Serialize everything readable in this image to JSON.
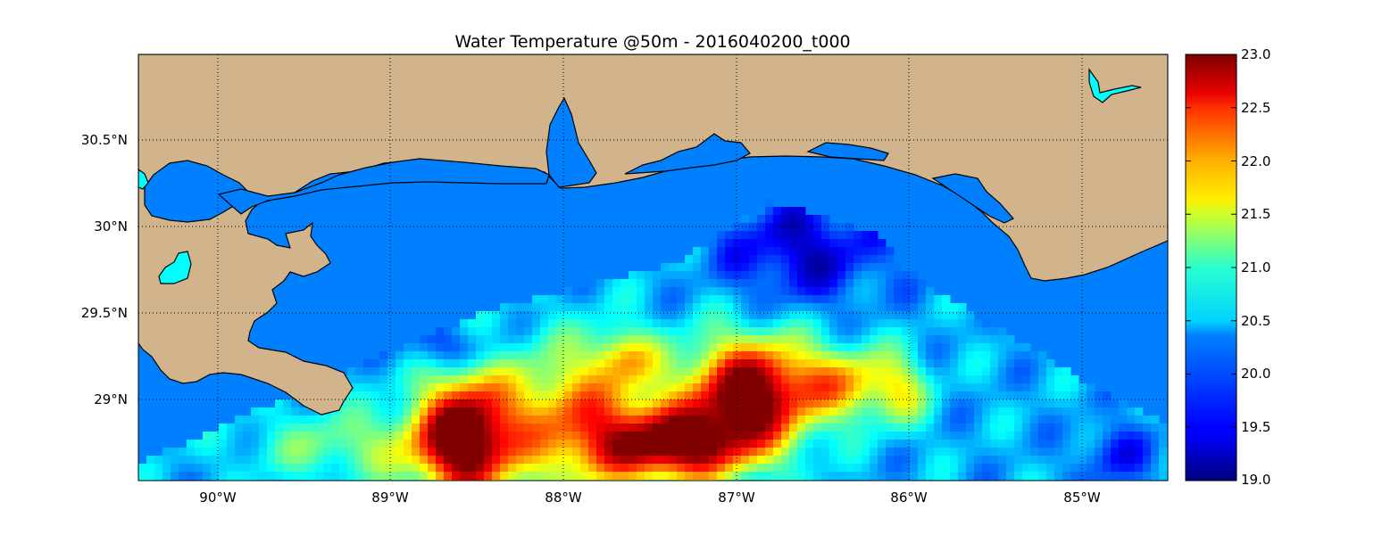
{
  "title": "Water Temperature @50m - 2016040200_t000",
  "map": {
    "lon_range": [
      -90.5,
      -84.5
    ],
    "lat_range": [
      28.55,
      31.0
    ],
    "lon_ticks": [
      {
        "value": -90,
        "label": "90°W"
      },
      {
        "value": -89,
        "label": "89°W"
      },
      {
        "value": -88,
        "label": "88°W"
      },
      {
        "value": -87,
        "label": "87°W"
      },
      {
        "value": -86,
        "label": "86°W"
      },
      {
        "value": -85,
        "label": "85°W"
      }
    ],
    "lat_ticks": [
      {
        "value": 30.5,
        "label": "30.5°N"
      },
      {
        "value": 30.0,
        "label": "30°N"
      },
      {
        "value": 29.5,
        "label": "29.5°N"
      },
      {
        "value": 29.0,
        "label": "29°N"
      }
    ],
    "grid": true,
    "grid_style": "dotted",
    "colors": {
      "land": "#d2b48c",
      "masked_water": "#0080ff",
      "lake": "#00ffff",
      "coastline": "#000000"
    }
  },
  "colorbar": {
    "min": 19.0,
    "max": 23.0,
    "colormap": "jet",
    "ticks": [
      "23.0",
      "22.5",
      "22.0",
      "21.5",
      "21.0",
      "20.5",
      "20.0",
      "19.5",
      "19.0"
    ]
  }
}
